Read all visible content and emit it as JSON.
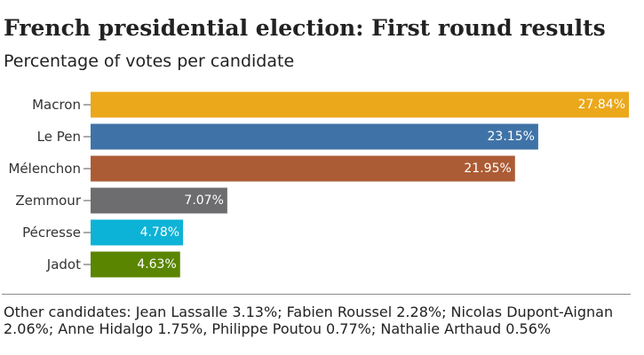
{
  "header": {
    "title": "French presidential election: First round results",
    "subtitle": "Percentage of votes per candidate"
  },
  "chart_data": {
    "type": "bar",
    "orientation": "horizontal",
    "title": "French presidential election: First round results",
    "subtitle": "Percentage of votes per candidate",
    "xlabel": "",
    "ylabel": "",
    "xlim": [
      0,
      27.84
    ],
    "grid": false,
    "legend": "none",
    "categories": [
      "Macron",
      "Le Pen",
      "Mélenchon",
      "Zemmour",
      "Pécresse",
      "Jadot"
    ],
    "values": [
      27.84,
      23.15,
      21.95,
      7.07,
      4.78,
      4.63
    ],
    "value_labels": [
      "27.84%",
      "23.15%",
      "21.95%",
      "7.07%",
      "4.78%",
      "4.63%"
    ],
    "colors": [
      "#EBA81B",
      "#3F73A8",
      "#AC5C35",
      "#6D6D70",
      "#0DB3D6",
      "#5A8500"
    ]
  },
  "footnote": {
    "text": "Other candidates: Jean Lassalle 3.13%; Fabien Roussel 2.28%; Nicolas Dupont-Aignan 2.06%; Anne Hidalgo 1.75%, Philippe Poutou 0.77%; Nathalie Arthaud 0.56%"
  }
}
